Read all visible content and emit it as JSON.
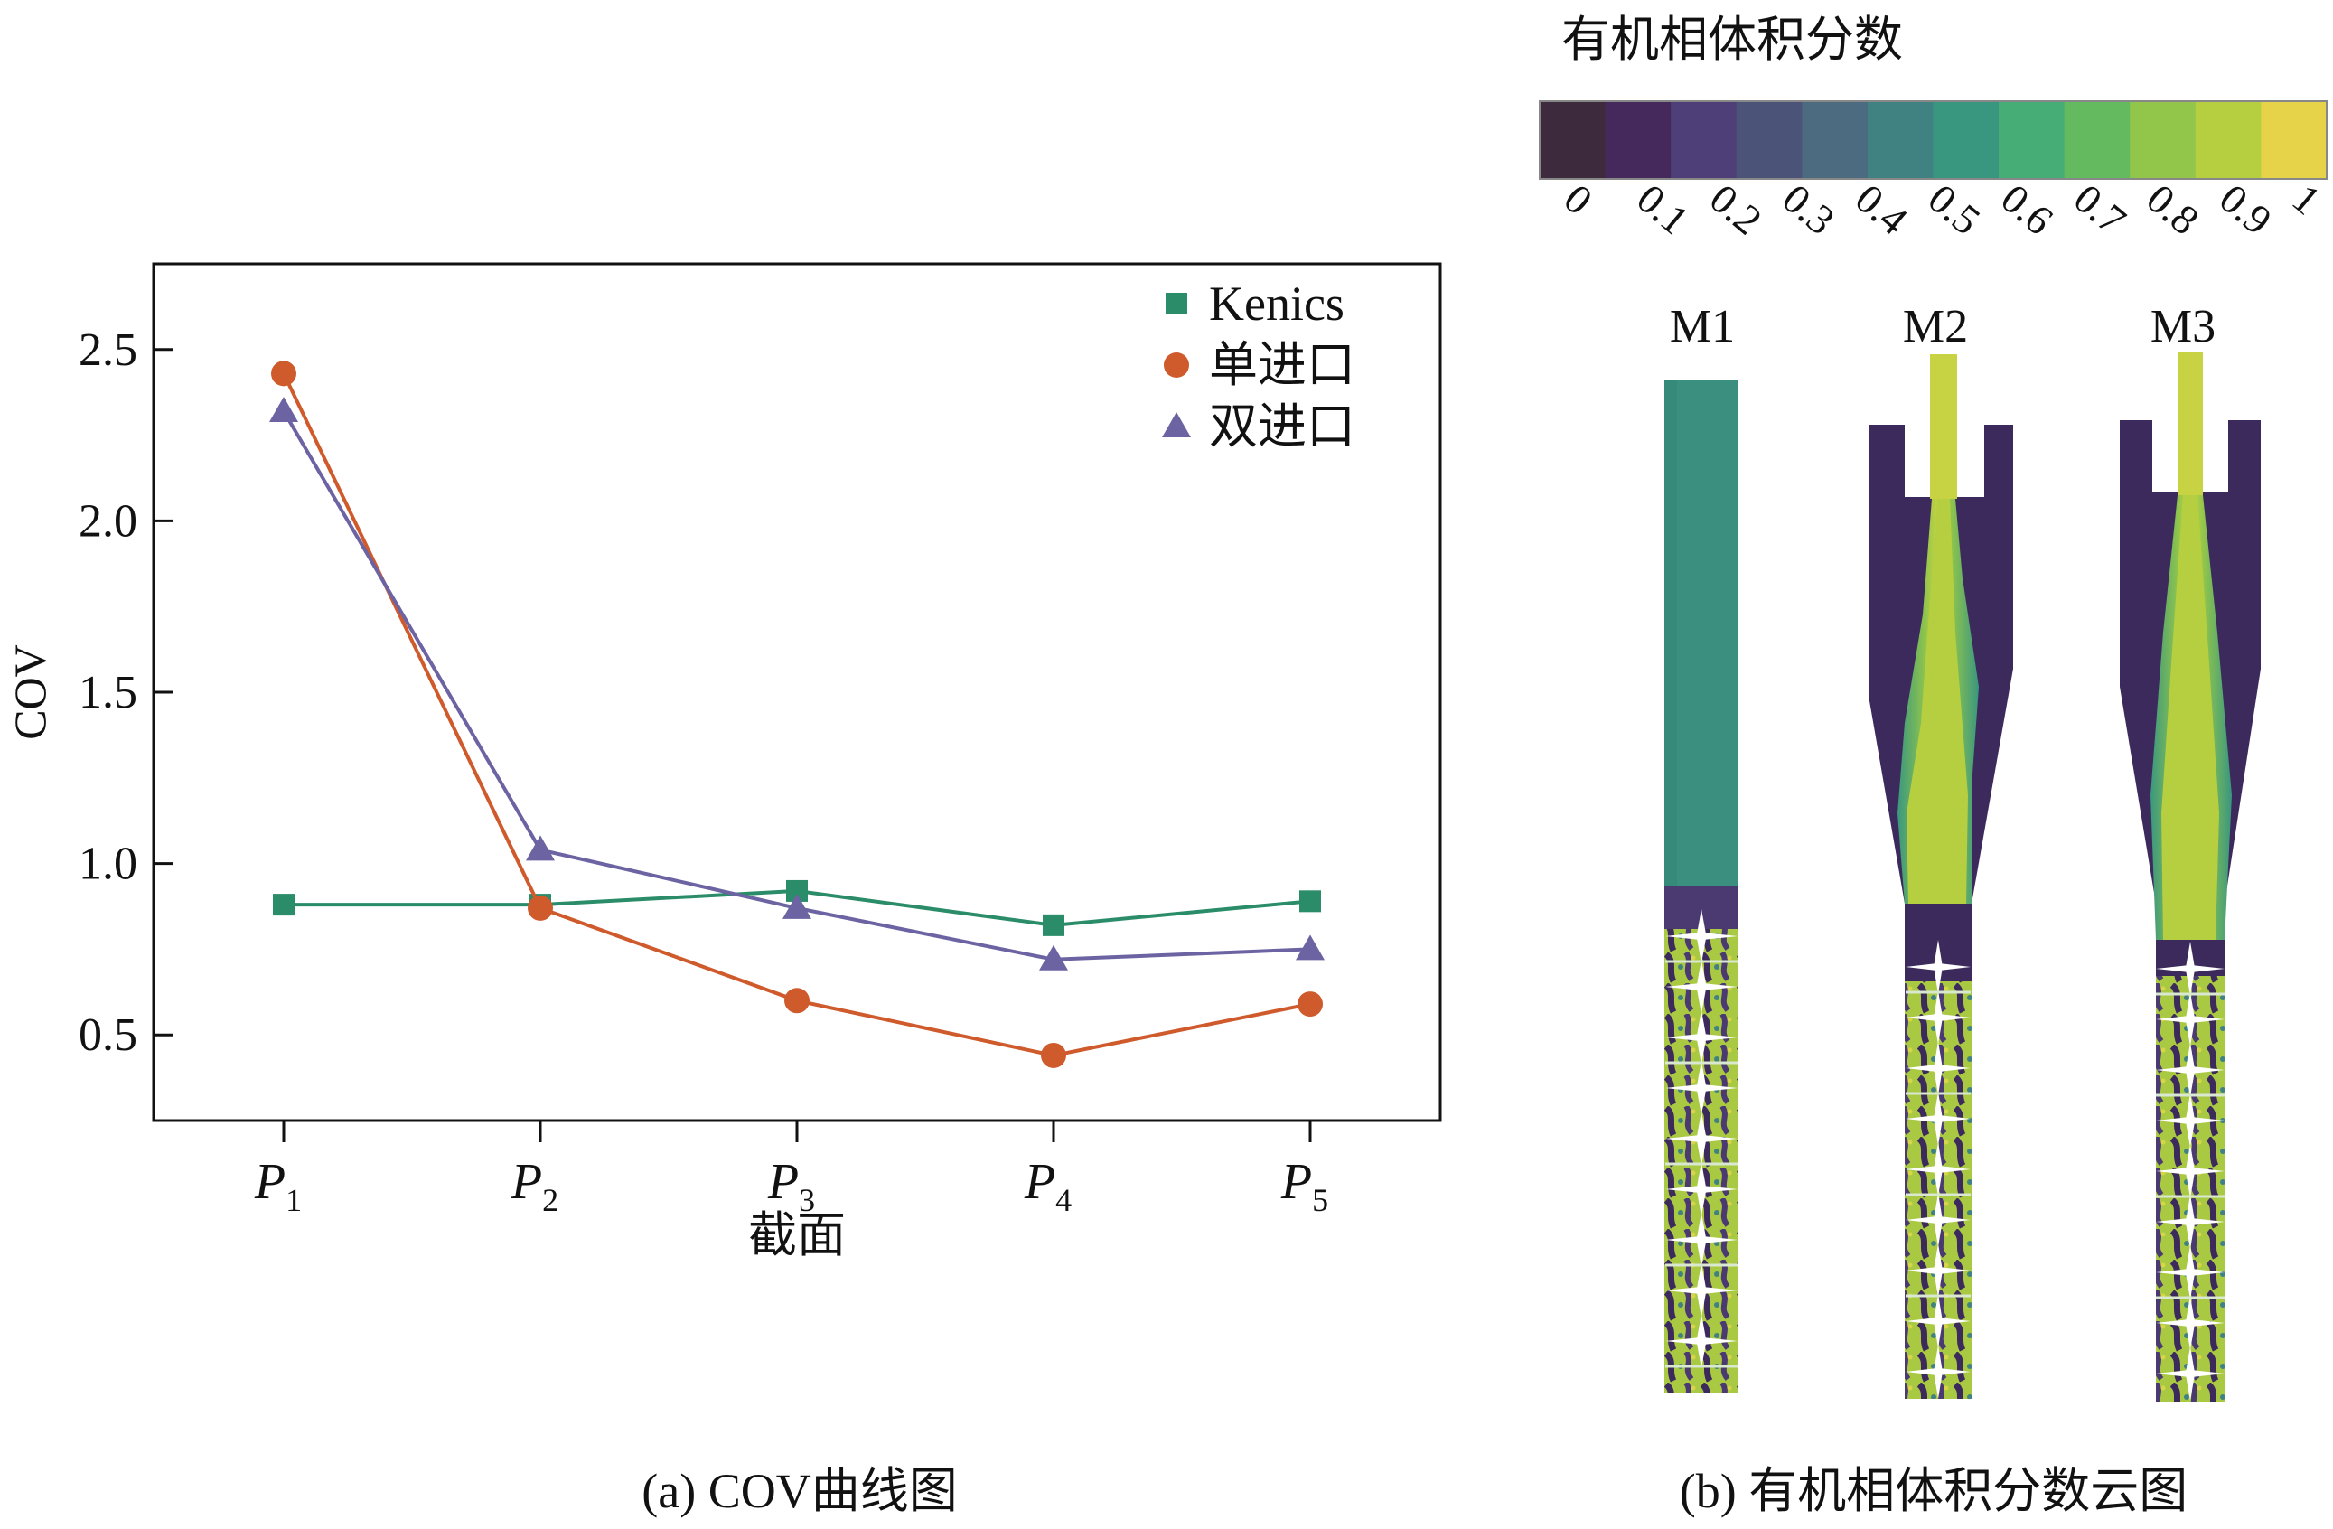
{
  "chart_data": [
    {
      "type": "line",
      "caption": "(a) COV曲线图",
      "xlabel": "截面",
      "ylabel": "COV",
      "categories": [
        "P1",
        "P2",
        "P3",
        "P4",
        "P5"
      ],
      "category_parts": [
        {
          "main": "P",
          "sub": "1"
        },
        {
          "main": "P",
          "sub": "2"
        },
        {
          "main": "P",
          "sub": "3"
        },
        {
          "main": "P",
          "sub": "4"
        },
        {
          "main": "P",
          "sub": "5"
        }
      ],
      "ylim": [
        0.25,
        2.75
      ],
      "yticks": [
        0.5,
        1.0,
        1.5,
        2.0,
        2.5
      ],
      "ytick_labels": [
        "0.5",
        "1.0",
        "1.5",
        "2.0",
        "2.5"
      ],
      "legend_position": "top-right",
      "grid": false,
      "series": [
        {
          "name": "Kenics",
          "marker": "square",
          "color": "#2a8c69",
          "values": [
            0.88,
            0.88,
            0.92,
            0.82,
            0.89
          ]
        },
        {
          "name": "单进口",
          "marker": "circle",
          "color": "#cf5a2c",
          "values": [
            2.43,
            0.87,
            0.6,
            0.44,
            0.59
          ]
        },
        {
          "name": "双进口",
          "marker": "triangle",
          "color": "#6c63a3",
          "values": [
            2.32,
            1.04,
            0.87,
            0.72,
            0.75
          ]
        }
      ]
    },
    {
      "type": "heatmap",
      "caption": "(b) 有机相体积分数云图",
      "colorbar_title": "有机相体积分数",
      "colorbar_ticks": [
        "0",
        "0.1",
        "0.2",
        "0.3",
        "0.4",
        "0.5",
        "0.6",
        "0.7",
        "0.8",
        "0.9",
        "1"
      ],
      "colorbar_colors": [
        "#3d2a3c",
        "#45285c",
        "#4f3f78",
        "#4b5478",
        "#4c6a80",
        "#3f8281",
        "#3a977f",
        "#47ad77",
        "#64bb5f",
        "#92c64b",
        "#b6cf40",
        "#e6d34a"
      ],
      "panels": [
        {
          "label": "M1",
          "shape": "straight"
        },
        {
          "label": "M2",
          "shape": "single-inlet"
        },
        {
          "label": "M3",
          "shape": "double-inlet"
        }
      ]
    }
  ]
}
